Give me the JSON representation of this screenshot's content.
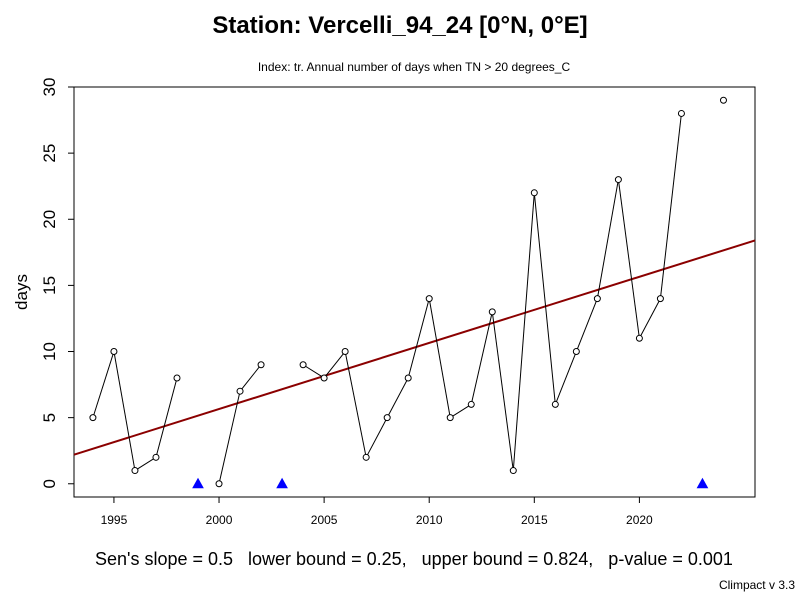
{
  "header": {
    "title": "Station: Vercelli_94_24 [0°N, 0°E]",
    "subtitle": "Index: tr. Annual number of days when TN > 20 degrees_C"
  },
  "footer": {
    "stats": "Sen's slope = 0.5   lower bound = 0.25,   upper bound = 0.824,   p-value = 0.001",
    "credit": "Climpact v 3.3"
  },
  "colors": {
    "trend_line": "#8b0000",
    "series_line": "#000000",
    "missing_marker": "#0000ff"
  },
  "chart_data": {
    "type": "line",
    "title": "Station: Vercelli_94_24 [0°N, 0°E]",
    "subtitle": "Index: tr. Annual number of days when TN > 20 degrees_C",
    "xlabel": "",
    "ylabel": "days",
    "xlim": [
      1993.1,
      2025.5
    ],
    "ylim": [
      -1,
      30
    ],
    "x_ticks": [
      1995,
      2000,
      2005,
      2010,
      2015,
      2020
    ],
    "y_ticks": [
      0,
      5,
      10,
      15,
      20,
      25,
      30
    ],
    "grid": false,
    "series": [
      {
        "x": [
          1994,
          1995,
          1996,
          1997,
          1998,
          1999,
          2000,
          2001,
          2002,
          2003,
          2004,
          2005,
          2006,
          2007,
          2008,
          2009,
          2010,
          2011,
          2012,
          2013,
          2014,
          2015,
          2016,
          2017,
          2018,
          2019,
          2020,
          2021,
          2022,
          2023,
          2024
        ],
        "values": [
          5,
          10,
          1,
          2,
          8,
          null,
          0,
          7,
          9,
          null,
          9,
          8,
          10,
          2,
          5,
          8,
          14,
          5,
          6,
          13,
          1,
          22,
          6,
          10,
          14,
          23,
          11,
          14,
          28,
          null,
          29
        ]
      }
    ],
    "missing_years": [
      1999,
      2003,
      2023
    ],
    "trend": {
      "x": [
        1993.1,
        2025.5
      ],
      "y": [
        2.2,
        18.4
      ]
    }
  }
}
